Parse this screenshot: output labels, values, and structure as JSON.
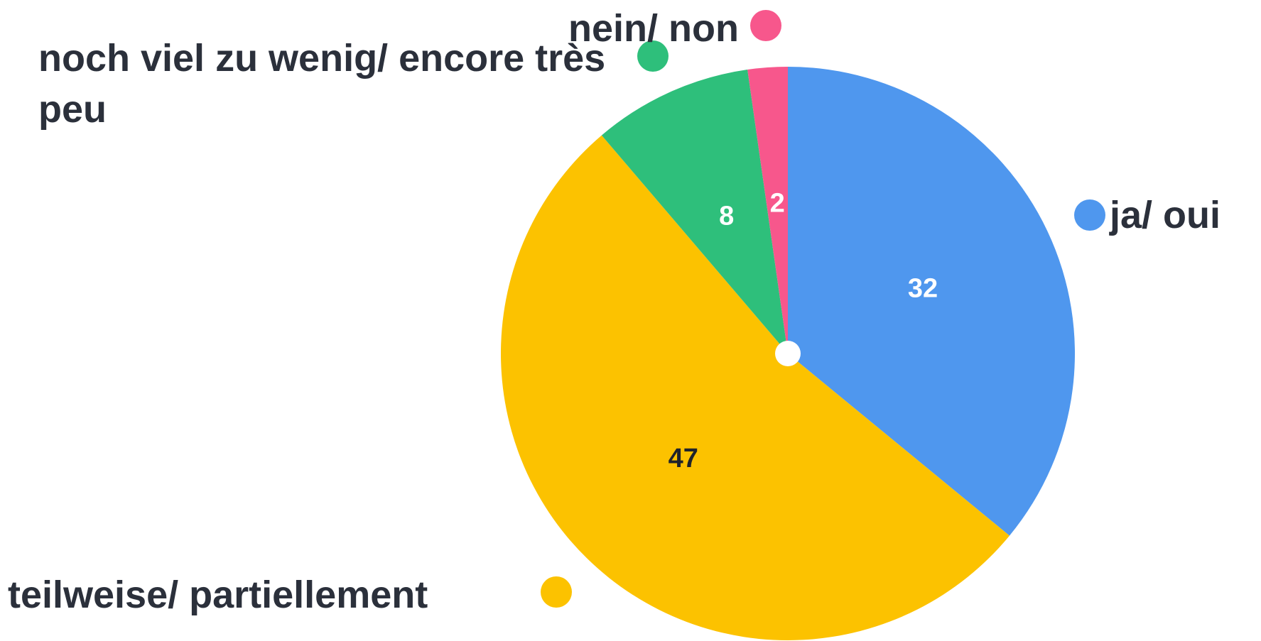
{
  "chart_data": {
    "type": "pie",
    "categories": [
      "ja/ oui",
      "teilweise/ partiellement",
      "noch viel zu wenig/ encore très peu",
      "nein/ non"
    ],
    "values": [
      32,
      47,
      8,
      2
    ],
    "colors": [
      "#4f97ee",
      "#fcc200",
      "#2ebf7b",
      "#f7578c"
    ]
  }
}
